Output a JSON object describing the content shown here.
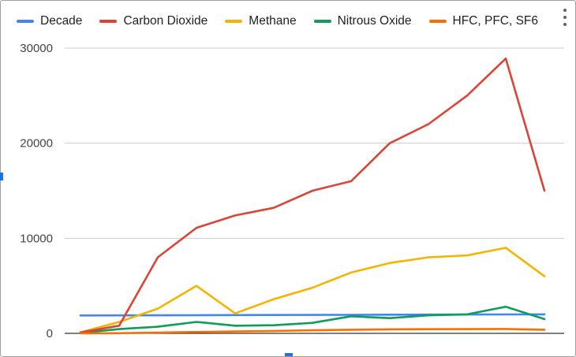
{
  "chart_data": {
    "type": "line",
    "title": "",
    "xlabel": "",
    "ylabel": "",
    "ylim": [
      0,
      30000
    ],
    "yticks": [
      0,
      10000,
      20000,
      30000
    ],
    "ytick_labels": [
      "0",
      "10000",
      "20000",
      "30000"
    ],
    "grid": true,
    "legend_position": "top",
    "x": [
      1,
      2,
      3,
      4,
      5,
      6,
      7,
      8,
      9,
      10,
      11,
      12,
      13
    ],
    "series": [
      {
        "name": "Decade",
        "color": "#4285f4",
        "values": [
          1880,
          1890,
          1900,
          1910,
          1920,
          1930,
          1940,
          1950,
          1960,
          1970,
          1980,
          1990,
          2000
        ]
      },
      {
        "name": "Carbon Dioxide",
        "color": "#db4437",
        "values": [
          100,
          800,
          8000,
          11100,
          12400,
          13200,
          15000,
          16000,
          20000,
          22000,
          25000,
          28900,
          15000
        ]
      },
      {
        "name": "Methane",
        "color": "#f4b400",
        "values": [
          100,
          1200,
          2600,
          5000,
          2100,
          3600,
          4800,
          6400,
          7400,
          8000,
          8200,
          9000,
          6000
        ]
      },
      {
        "name": "Nitrous Oxide",
        "color": "#0f9d58",
        "values": [
          50,
          450,
          700,
          1200,
          800,
          850,
          1100,
          1800,
          1600,
          1900,
          2000,
          2800,
          1500
        ]
      },
      {
        "name": "HFC, PFC, SF6",
        "color": "#ff6d01",
        "values": [
          0,
          20,
          80,
          150,
          200,
          250,
          320,
          380,
          420,
          440,
          450,
          460,
          380
        ]
      }
    ]
  },
  "menu": {
    "icon": "more-vert-icon"
  }
}
